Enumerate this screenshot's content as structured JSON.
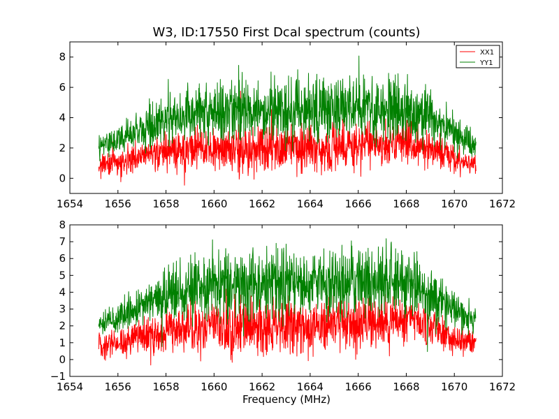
{
  "chart_data": [
    {
      "type": "line",
      "title": "W3, ID:17550 First Dcal spectrum (counts)",
      "xlabel": "",
      "ylabel": "",
      "xlim": [
        1654,
        1672
      ],
      "ylim": [
        -1,
        9
      ],
      "x_ticks": [
        1654,
        1656,
        1658,
        1660,
        1662,
        1664,
        1666,
        1668,
        1670,
        1672
      ],
      "y_ticks": [
        0,
        2,
        4,
        6,
        8
      ],
      "x_tick_labels": [
        "1654",
        "1656",
        "1658",
        "1660",
        "1662",
        "1664",
        "1666",
        "1668",
        "1670",
        "1672"
      ],
      "y_tick_labels": [
        "0",
        "2",
        "4",
        "6",
        "8"
      ],
      "legend": {
        "position": "top-right",
        "entries": [
          "XX1",
          "YY1"
        ]
      },
      "grid": false,
      "series": [
        {
          "name": "XX1",
          "color": "#ff0000",
          "x": [
            1655.2,
            1656.0,
            1657.0,
            1658.0,
            1659.0,
            1660.0,
            1661.0,
            1662.0,
            1663.0,
            1664.0,
            1665.0,
            1666.0,
            1667.0,
            1668.0,
            1669.0,
            1670.0,
            1670.9
          ],
          "y": [
            0.9,
            1.1,
            1.4,
            1.7,
            1.9,
            2.0,
            2.0,
            1.9,
            2.0,
            2.0,
            2.1,
            2.1,
            2.3,
            2.5,
            2.0,
            1.3,
            1.0
          ],
          "spread": [
            0.5,
            0.6,
            0.7,
            0.8,
            0.9,
            1.0,
            1.1,
            1.1,
            1.1,
            1.0,
            1.0,
            1.0,
            1.0,
            0.9,
            0.8,
            0.6,
            0.5
          ]
        },
        {
          "name": "YY1",
          "color": "#008000",
          "x": [
            1655.2,
            1656.0,
            1657.0,
            1658.0,
            1659.0,
            1660.0,
            1661.0,
            1662.0,
            1663.0,
            1664.0,
            1665.0,
            1666.0,
            1667.0,
            1668.0,
            1669.0,
            1670.0,
            1670.9
          ],
          "y": [
            2.1,
            2.5,
            3.2,
            3.9,
            4.3,
            4.5,
            4.5,
            4.4,
            4.5,
            4.5,
            4.5,
            4.6,
            4.6,
            4.6,
            4.0,
            2.9,
            2.2
          ],
          "spread": [
            0.5,
            0.6,
            0.8,
            1.0,
            1.2,
            1.3,
            1.4,
            1.4,
            1.4,
            1.3,
            1.3,
            1.3,
            1.4,
            1.3,
            1.1,
            0.8,
            0.6
          ]
        }
      ]
    },
    {
      "type": "line",
      "title": "",
      "xlabel": "Frequency (MHz)",
      "ylabel": "",
      "xlim": [
        1654,
        1672
      ],
      "ylim": [
        -1,
        8
      ],
      "x_ticks": [
        1654,
        1656,
        1658,
        1660,
        1662,
        1664,
        1666,
        1668,
        1670,
        1672
      ],
      "y_ticks": [
        -1,
        0,
        1,
        2,
        3,
        4,
        5,
        6,
        7,
        8
      ],
      "x_tick_labels": [
        "1654",
        "1656",
        "1658",
        "1660",
        "1662",
        "1664",
        "1666",
        "1668",
        "1670",
        "1672"
      ],
      "y_tick_labels": [
        "−1",
        "0",
        "1",
        "2",
        "3",
        "4",
        "5",
        "6",
        "7",
        "8"
      ],
      "grid": false,
      "series": [
        {
          "color": "#ff0000",
          "x": [
            1655.2,
            1656.0,
            1657.0,
            1658.0,
            1659.0,
            1660.0,
            1661.0,
            1662.0,
            1663.0,
            1664.0,
            1665.0,
            1666.0,
            1667.0,
            1668.0,
            1669.0,
            1670.0,
            1670.9
          ],
          "y": [
            0.9,
            1.1,
            1.4,
            1.7,
            1.9,
            2.0,
            2.0,
            1.9,
            2.0,
            2.0,
            2.1,
            2.1,
            2.3,
            2.5,
            2.0,
            1.3,
            1.0
          ],
          "spread": [
            0.5,
            0.6,
            0.7,
            0.8,
            0.9,
            1.0,
            1.1,
            1.1,
            1.1,
            1.0,
            1.0,
            1.0,
            1.0,
            0.9,
            0.8,
            0.6,
            0.5
          ]
        },
        {
          "color": "#008000",
          "x": [
            1655.2,
            1656.0,
            1657.0,
            1658.0,
            1659.0,
            1660.0,
            1661.0,
            1662.0,
            1663.0,
            1664.0,
            1665.0,
            1666.0,
            1667.0,
            1668.0,
            1669.0,
            1670.0,
            1670.9
          ],
          "y": [
            2.1,
            2.5,
            3.2,
            3.9,
            4.3,
            4.5,
            4.5,
            4.4,
            4.5,
            4.5,
            4.5,
            4.6,
            4.6,
            4.6,
            4.0,
            2.9,
            2.2
          ],
          "spread": [
            0.5,
            0.6,
            0.8,
            1.0,
            1.2,
            1.3,
            1.4,
            1.4,
            1.4,
            1.3,
            1.3,
            1.3,
            1.4,
            1.3,
            1.1,
            0.8,
            0.6
          ]
        }
      ]
    }
  ]
}
